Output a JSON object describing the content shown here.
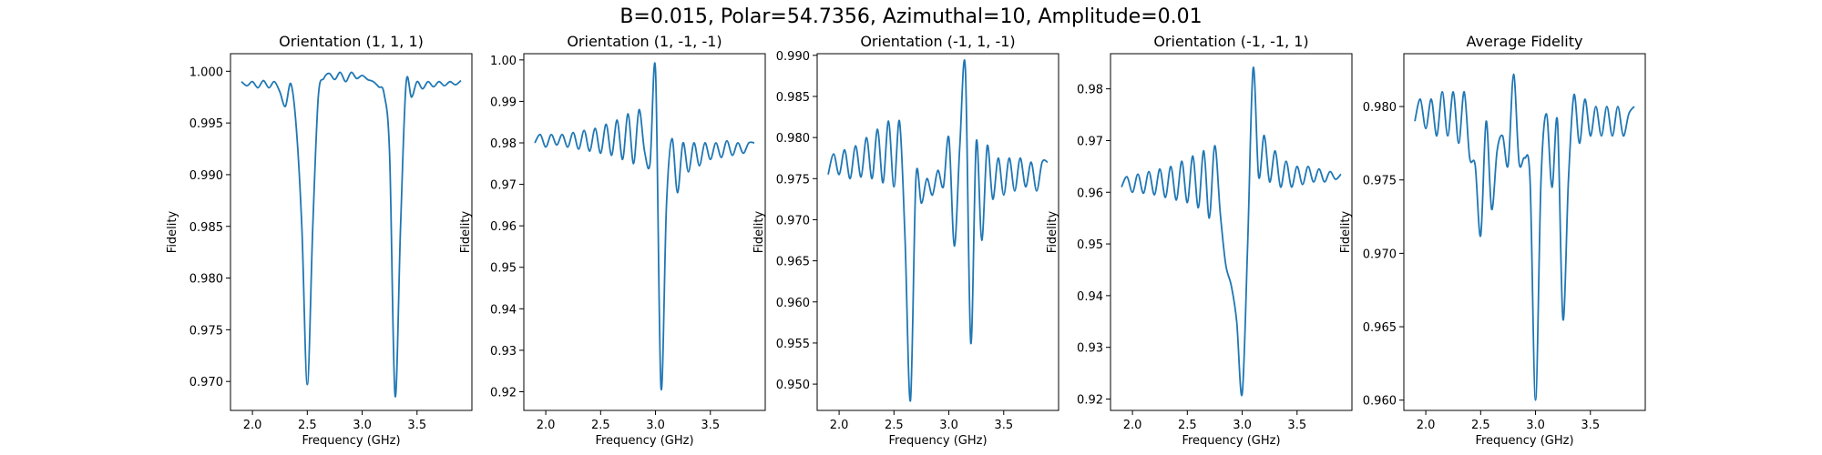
{
  "figure_title": "B=0.015, Polar=54.7356, Azimuthal=10, Amplitude=0.01",
  "colors": {
    "line": "#1f77b4"
  },
  "chart_data": [
    {
      "type": "line",
      "title": "Orientation (1, 1, 1)",
      "xlabel": "Frequency (GHz)",
      "ylabel": "Fidelity",
      "xlim": [
        1.8,
        4.0
      ],
      "ylim": [
        0.9672,
        1.0017
      ],
      "xticks": [
        2.0,
        2.5,
        3.0,
        3.5
      ],
      "yticks": [
        0.97,
        0.975,
        0.98,
        0.985,
        0.99,
        0.995,
        1.0
      ],
      "series": [
        {
          "x": [
            1.9,
            1.95,
            2.0,
            2.05,
            2.1,
            2.15,
            2.2,
            2.25,
            2.3,
            2.35,
            2.4,
            2.45,
            2.5,
            2.55,
            2.6,
            2.65,
            2.7,
            2.75,
            2.8,
            2.85,
            2.9,
            2.95,
            3.0,
            3.05,
            3.1,
            3.15,
            3.2,
            3.25,
            3.3,
            3.35,
            3.4,
            3.45,
            3.5,
            3.55,
            3.6,
            3.65,
            3.7,
            3.75,
            3.8,
            3.85,
            3.9
          ],
          "y": [
            0.999,
            0.9986,
            0.999,
            0.9984,
            0.9991,
            0.9984,
            0.999,
            0.998,
            0.9966,
            0.9988,
            0.9945,
            0.985,
            0.9697,
            0.985,
            0.9975,
            0.9993,
            0.9998,
            0.9992,
            0.9999,
            0.999,
            0.9999,
            0.9993,
            0.9996,
            0.9992,
            0.999,
            0.9985,
            0.9978,
            0.992,
            0.9686,
            0.985,
            0.9988,
            0.9975,
            0.999,
            0.9983,
            0.999,
            0.9985,
            0.999,
            0.9986,
            0.999,
            0.9987,
            0.9991
          ]
        }
      ]
    },
    {
      "type": "line",
      "title": "Orientation (1, -1, -1)",
      "xlabel": "Frequency (GHz)",
      "ylabel": "Fidelity",
      "xlim": [
        1.8,
        4.0
      ],
      "ylim": [
        0.9155,
        1.0015
      ],
      "xticks": [
        2.0,
        2.5,
        3.0,
        3.5
      ],
      "yticks": [
        0.92,
        0.93,
        0.94,
        0.95,
        0.96,
        0.97,
        0.98,
        0.99,
        1.0
      ],
      "series": [
        {
          "x": [
            1.9,
            1.95,
            2.0,
            2.05,
            2.1,
            2.15,
            2.2,
            2.25,
            2.3,
            2.35,
            2.4,
            2.45,
            2.5,
            2.55,
            2.6,
            2.65,
            2.7,
            2.75,
            2.8,
            2.85,
            2.9,
            2.95,
            3.0,
            3.05,
            3.1,
            3.15,
            3.2,
            3.25,
            3.3,
            3.35,
            3.4,
            3.45,
            3.5,
            3.55,
            3.6,
            3.65,
            3.7,
            3.75,
            3.8,
            3.85,
            3.9
          ],
          "y": [
            0.98,
            0.982,
            0.979,
            0.982,
            0.9795,
            0.982,
            0.979,
            0.9825,
            0.9785,
            0.983,
            0.978,
            0.9835,
            0.9775,
            0.9845,
            0.977,
            0.9855,
            0.976,
            0.987,
            0.975,
            0.988,
            0.978,
            0.975,
            0.9975,
            0.921,
            0.965,
            0.981,
            0.968,
            0.98,
            0.973,
            0.98,
            0.9745,
            0.98,
            0.976,
            0.98,
            0.9765,
            0.9805,
            0.977,
            0.98,
            0.9775,
            0.98,
            0.98
          ]
        }
      ]
    },
    {
      "type": "line",
      "title": "Orientation (-1, 1, -1)",
      "xlabel": "Frequency (GHz)",
      "ylabel": "Fidelity",
      "xlim": [
        1.8,
        4.0
      ],
      "ylim": [
        0.9468,
        0.9902
      ],
      "xticks": [
        2.0,
        2.5,
        3.0,
        3.5
      ],
      "yticks": [
        0.95,
        0.955,
        0.96,
        0.965,
        0.97,
        0.975,
        0.98,
        0.985,
        0.99
      ],
      "series": [
        {
          "x": [
            1.9,
            1.95,
            2.0,
            2.05,
            2.1,
            2.15,
            2.2,
            2.25,
            2.3,
            2.35,
            2.4,
            2.45,
            2.5,
            2.55,
            2.6,
            2.65,
            2.7,
            2.75,
            2.8,
            2.85,
            2.9,
            2.95,
            3.0,
            3.05,
            3.1,
            3.15,
            3.2,
            3.25,
            3.3,
            3.35,
            3.4,
            3.45,
            3.5,
            3.55,
            3.6,
            3.65,
            3.7,
            3.75,
            3.8,
            3.85,
            3.9
          ],
          "y": [
            0.9755,
            0.978,
            0.9755,
            0.9785,
            0.975,
            0.979,
            0.9752,
            0.98,
            0.975,
            0.981,
            0.9745,
            0.982,
            0.974,
            0.982,
            0.968,
            0.948,
            0.975,
            0.972,
            0.975,
            0.973,
            0.976,
            0.974,
            0.98,
            0.9668,
            0.979,
            0.9885,
            0.955,
            0.9795,
            0.9675,
            0.979,
            0.9725,
            0.9775,
            0.973,
            0.9775,
            0.9735,
            0.9775,
            0.974,
            0.977,
            0.9735,
            0.977,
            0.977
          ]
        }
      ]
    },
    {
      "type": "line",
      "title": "Orientation (-1, -1, 1)",
      "xlabel": "Frequency (GHz)",
      "ylabel": "Fidelity",
      "xlim": [
        1.8,
        4.0
      ],
      "ylim": [
        0.9178,
        0.9868
      ],
      "xticks": [
        2.0,
        2.5,
        3.0,
        3.5
      ],
      "yticks": [
        0.92,
        0.93,
        0.94,
        0.95,
        0.96,
        0.97,
        0.98
      ],
      "series": [
        {
          "x": [
            1.9,
            1.95,
            2.0,
            2.05,
            2.1,
            2.15,
            2.2,
            2.25,
            2.3,
            2.35,
            2.4,
            2.45,
            2.5,
            2.55,
            2.6,
            2.65,
            2.7,
            2.75,
            2.8,
            2.85,
            2.9,
            2.95,
            3.0,
            3.05,
            3.1,
            3.15,
            3.2,
            3.25,
            3.3,
            3.35,
            3.4,
            3.45,
            3.5,
            3.55,
            3.6,
            3.65,
            3.7,
            3.75,
            3.8,
            3.85,
            3.9
          ],
          "y": [
            0.961,
            0.963,
            0.96,
            0.9635,
            0.9598,
            0.964,
            0.9595,
            0.9645,
            0.959,
            0.965,
            0.9585,
            0.966,
            0.958,
            0.967,
            0.957,
            0.968,
            0.955,
            0.969,
            0.956,
            0.946,
            0.942,
            0.935,
            0.921,
            0.95,
            0.984,
            0.963,
            0.971,
            0.962,
            0.968,
            0.961,
            0.966,
            0.961,
            0.965,
            0.9615,
            0.965,
            0.962,
            0.9645,
            0.962,
            0.964,
            0.9625,
            0.9635
          ]
        }
      ]
    },
    {
      "type": "line",
      "title": "Average Fidelity",
      "xlabel": "Frequency (GHz)",
      "ylabel": "Fidelity",
      "xlim": [
        1.8,
        4.0
      ],
      "ylim": [
        0.9593,
        0.9836
      ],
      "xticks": [
        2.0,
        2.5,
        3.0,
        3.5
      ],
      "yticks": [
        0.96,
        0.965,
        0.97,
        0.975,
        0.98
      ],
      "series": [
        {
          "x": [
            1.9,
            1.95,
            2.0,
            2.05,
            2.1,
            2.15,
            2.2,
            2.25,
            2.3,
            2.35,
            2.4,
            2.45,
            2.5,
            2.55,
            2.6,
            2.65,
            2.7,
            2.75,
            2.8,
            2.85,
            2.9,
            2.95,
            3.0,
            3.05,
            3.1,
            3.15,
            3.2,
            3.25,
            3.3,
            3.35,
            3.4,
            3.45,
            3.5,
            3.55,
            3.6,
            3.65,
            3.7,
            3.75,
            3.8,
            3.85,
            3.9
          ],
          "y": [
            0.979,
            0.9805,
            0.9785,
            0.9805,
            0.978,
            0.981,
            0.978,
            0.981,
            0.9775,
            0.981,
            0.9765,
            0.976,
            0.9712,
            0.979,
            0.973,
            0.977,
            0.978,
            0.976,
            0.9822,
            0.9762,
            0.9765,
            0.975,
            0.96,
            0.975,
            0.9795,
            0.9745,
            0.979,
            0.9655,
            0.975,
            0.9808,
            0.9775,
            0.9805,
            0.978,
            0.98,
            0.978,
            0.98,
            0.978,
            0.98,
            0.978,
            0.9795,
            0.98
          ]
        }
      ]
    }
  ]
}
